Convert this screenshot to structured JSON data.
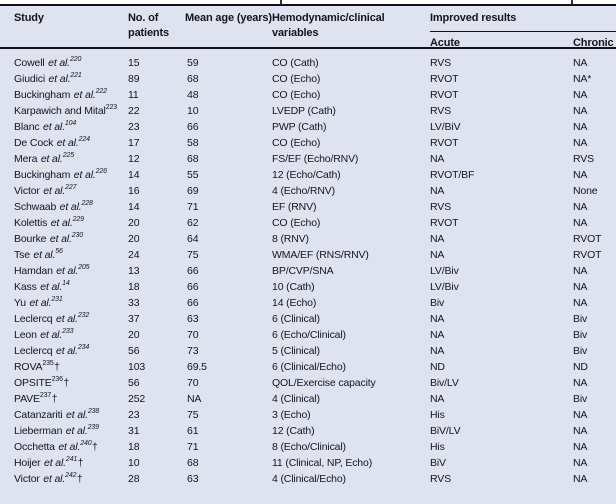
{
  "header": {
    "study": "Study",
    "patients": "No. of patients",
    "age": "Mean age (years)",
    "variables": "Hemodynamic/clinical variables",
    "improved": "Improved results",
    "acute": "Acute",
    "chronic": "Chronic"
  },
  "colors": {
    "background": "#dee3ef",
    "rule": "#121218",
    "text": "#15151c"
  },
  "rows": [
    {
      "name": "Cowell",
      "etal": "et al.",
      "ref": "220",
      "suffix": "",
      "patients": "15",
      "age": "59",
      "variables": "CO (Cath)",
      "acute": "RVS",
      "chronic": "NA"
    },
    {
      "name": "Giudici",
      "etal": "et al.",
      "ref": "221",
      "suffix": "",
      "patients": "89",
      "age": "68",
      "variables": "CO (Echo)",
      "acute": "RVOT",
      "chronic": "NA*"
    },
    {
      "name": "Buckingham",
      "etal": "et al.",
      "ref": "222",
      "suffix": "",
      "patients": "11",
      "age": "48",
      "variables": "CO (Echo)",
      "acute": "RVOT",
      "chronic": "NA"
    },
    {
      "name": "Karpawich and Mital",
      "etal": "",
      "ref": "223",
      "suffix": "",
      "patients": "22",
      "age": "10",
      "variables": "LVEDP (Cath)",
      "acute": "RVS",
      "chronic": "NA"
    },
    {
      "name": "Blanc",
      "etal": "et al.",
      "ref": "104",
      "suffix": "",
      "patients": "23",
      "age": "66",
      "variables": "PWP (Cath)",
      "acute": "LV/BiV",
      "chronic": "NA"
    },
    {
      "name": "De Cock",
      "etal": "et al.",
      "ref": "224",
      "suffix": "",
      "patients": "17",
      "age": "58",
      "variables": "CO (Echo)",
      "acute": "RVOT",
      "chronic": "NA"
    },
    {
      "name": "Mera",
      "etal": "et al.",
      "ref": "225",
      "suffix": "",
      "patients": "12",
      "age": "68",
      "variables": "FS/EF (Echo/RNV)",
      "acute": "NA",
      "chronic": "RVS"
    },
    {
      "name": "Buckingham",
      "etal": "et al.",
      "ref": "226",
      "suffix": "",
      "patients": "14",
      "age": "55",
      "variables": "12 (Echo/Cath)",
      "acute": "RVOT/BF",
      "chronic": "NA"
    },
    {
      "name": "Victor",
      "etal": "et al.",
      "ref": "227",
      "suffix": "",
      "patients": "16",
      "age": "69",
      "variables": "4 (Echo/RNV)",
      "acute": "NA",
      "chronic": "None"
    },
    {
      "name": "Schwaab",
      "etal": "et al.",
      "ref": "228",
      "suffix": "",
      "patients": "14",
      "age": "71",
      "variables": "EF (RNV)",
      "acute": "RVS",
      "chronic": "NA"
    },
    {
      "name": "Kolettis",
      "etal": "et al.",
      "ref": "229",
      "suffix": "",
      "patients": "20",
      "age": "62",
      "variables": "CO (Echo)",
      "acute": "RVOT",
      "chronic": "NA"
    },
    {
      "name": "Bourke",
      "etal": "et al.",
      "ref": "230",
      "suffix": "",
      "patients": "20",
      "age": "64",
      "variables": "8 (RNV)",
      "acute": "NA",
      "chronic": "RVOT"
    },
    {
      "name": "Tse",
      "etal": "et al.",
      "ref": "56",
      "suffix": "",
      "patients": "24",
      "age": "75",
      "variables": "WMA/EF (RNS/RNV)",
      "acute": "NA",
      "chronic": "RVOT"
    },
    {
      "name": "Hamdan",
      "etal": "et al.",
      "ref": "205",
      "suffix": "",
      "patients": "13",
      "age": "66",
      "variables": "BP/CVP/SNA",
      "acute": "LV/Biv",
      "chronic": "NA"
    },
    {
      "name": "Kass",
      "etal": "et al.",
      "ref": "14",
      "suffix": "",
      "patients": "18",
      "age": "66",
      "variables": "10 (Cath)",
      "acute": "LV/Biv",
      "chronic": "NA"
    },
    {
      "name": "Yu",
      "etal": "et al.",
      "ref": "231",
      "suffix": "",
      "patients": "33",
      "age": "66",
      "variables": "14 (Echo)",
      "acute": "Biv",
      "chronic": "NA"
    },
    {
      "name": "Leclercq",
      "etal": "et al.",
      "ref": "232",
      "suffix": "",
      "patients": "37",
      "age": "63",
      "variables": "6 (Clinical)",
      "acute": "NA",
      "chronic": "Biv"
    },
    {
      "name": "Leon",
      "etal": "et al.",
      "ref": "233",
      "suffix": "",
      "patients": "20",
      "age": "70",
      "variables": "6 (Echo/Clinical)",
      "acute": "NA",
      "chronic": "Biv"
    },
    {
      "name": "Leclercq",
      "etal": "et al.",
      "ref": "234",
      "suffix": "",
      "patients": "56",
      "age": "73",
      "variables": "5 (Clinical)",
      "acute": "NA",
      "chronic": "Biv"
    },
    {
      "name": "ROVA",
      "etal": "",
      "ref": "235",
      "suffix": "†",
      "patients": "103",
      "age": "69.5",
      "variables": "6 (Clinical/Echo)",
      "acute": "ND",
      "chronic": "ND"
    },
    {
      "name": "OPSITE",
      "etal": "",
      "ref": "236",
      "suffix": "†",
      "patients": "56",
      "age": "70",
      "variables": "QOL/Exercise capacity",
      "acute": "Biv/LV",
      "chronic": "NA"
    },
    {
      "name": "PAVE",
      "etal": "",
      "ref": "237",
      "suffix": "†",
      "patients": "252",
      "age": "NA",
      "variables": "4 (Clinical)",
      "acute": "NA",
      "chronic": "Biv"
    },
    {
      "name": "Catanzariti",
      "etal": "et al.",
      "ref": "238",
      "suffix": "",
      "patients": "23",
      "age": "75",
      "variables": "3 (Echo)",
      "acute": "His",
      "chronic": "NA"
    },
    {
      "name": "Lieberman",
      "etal": "et al.",
      "ref": "239",
      "suffix": "",
      "patients": "31",
      "age": "61",
      "variables": "12 (Cath)",
      "acute": "BiV/LV",
      "chronic": "NA"
    },
    {
      "name": "Occhetta",
      "etal": "et al.",
      "ref": "240",
      "suffix": "†",
      "patients": "18",
      "age": "71",
      "variables": "8 (Echo/Clinical)",
      "acute": "His",
      "chronic": "NA"
    },
    {
      "name": "Hoijer",
      "etal": "et al.",
      "ref": "241",
      "suffix": "†",
      "patients": "10",
      "age": "68",
      "variables": "11 (Clinical, NP, Echo)",
      "acute": "BiV",
      "chronic": "NA"
    },
    {
      "name": "Victor",
      "etal": "et al.",
      "ref": "242",
      "suffix": "†",
      "patients": "28",
      "age": "63",
      "variables": "4 (Clinical/Echo)",
      "acute": "RVS",
      "chronic": "NA"
    }
  ]
}
